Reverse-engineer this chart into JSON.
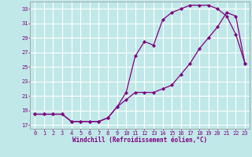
{
  "xlabel": "Windchill (Refroidissement éolien,°C)",
  "bg_color": "#c0e8e8",
  "grid_color": "#ffffff",
  "line_color": "#800080",
  "xlim": [
    -0.5,
    23.5
  ],
  "ylim": [
    16.5,
    34.0
  ],
  "xticks": [
    0,
    1,
    2,
    3,
    4,
    5,
    6,
    7,
    8,
    9,
    10,
    11,
    12,
    13,
    14,
    15,
    16,
    17,
    18,
    19,
    20,
    21,
    22,
    23
  ],
  "yticks": [
    17,
    19,
    21,
    23,
    25,
    27,
    29,
    31,
    33
  ],
  "curve1_x": [
    0,
    1,
    2,
    3,
    4,
    5,
    6,
    7,
    8,
    9,
    10,
    11,
    12,
    13,
    14,
    15,
    16,
    17,
    18,
    19,
    20,
    21,
    22,
    23
  ],
  "curve1_y": [
    18.5,
    18.5,
    18.5,
    18.5,
    17.5,
    17.5,
    17.5,
    17.5,
    18.0,
    19.5,
    20.5,
    21.5,
    21.5,
    21.5,
    22.0,
    22.5,
    24.0,
    25.5,
    27.5,
    29.0,
    30.5,
    32.5,
    32.0,
    25.5
  ],
  "curve2_x": [
    0,
    1,
    2,
    3,
    4,
    5,
    6,
    7,
    8,
    9,
    10,
    11,
    12,
    13,
    14,
    15,
    16,
    17,
    18,
    19,
    20,
    21,
    22,
    23
  ],
  "curve2_y": [
    18.5,
    18.5,
    18.5,
    18.5,
    17.5,
    17.5,
    17.5,
    17.5,
    18.0,
    19.5,
    21.5,
    26.5,
    28.5,
    28.0,
    31.5,
    32.5,
    33.0,
    33.5,
    33.5,
    33.5,
    33.0,
    32.0,
    29.5,
    25.5
  ],
  "xlabel_fontsize": 5.5,
  "tick_fontsize": 5.0,
  "line_width": 0.9,
  "marker_size": 2.2
}
